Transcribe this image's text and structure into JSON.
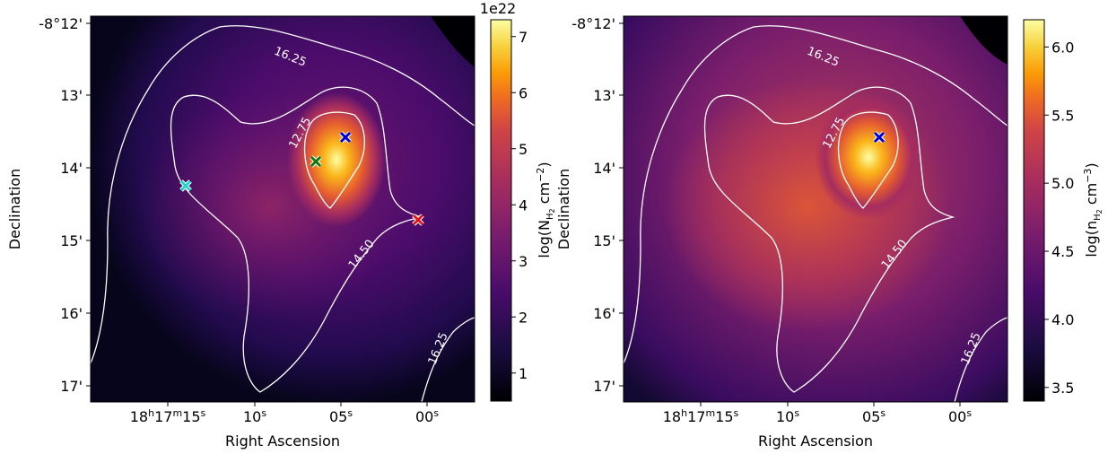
{
  "chart_data": [
    {
      "type": "heatmap",
      "xlabel": "Right Ascension",
      "ylabel": "Declination",
      "x_tick_labels": [
        {
          "h": "18",
          "hsup": "h",
          "m": "17",
          "msup": "m",
          "s": "15",
          "ssup": "s"
        },
        {
          "s": "10",
          "ssup": "s"
        },
        {
          "s": "05",
          "ssup": "s"
        },
        {
          "s": "00",
          "ssup": "s"
        }
      ],
      "y_tick_labels": [
        "-8°12'",
        "13'",
        "14'",
        "15'",
        "16'",
        "17'"
      ],
      "contour_labels": [
        "16.25",
        "12.75",
        "14.50",
        "16.25"
      ],
      "colorbar": {
        "label_main": "log(N",
        "label_sub1": "H",
        "label_sub2": "2",
        "label_tail": " cm",
        "label_exp": "−2",
        "label_close": ")",
        "offset_text": "1e22",
        "ticks": [
          "1",
          "2",
          "3",
          "4",
          "5",
          "6",
          "7"
        ],
        "range": [
          0.5,
          7.3
        ],
        "colormap": "inferno"
      },
      "markers": [
        {
          "name": "blue",
          "color": "#0000cc"
        },
        {
          "name": "green",
          "color": "#117711"
        },
        {
          "name": "cyan",
          "color": "#22d3d3"
        },
        {
          "name": "red",
          "color": "#e01515"
        }
      ]
    },
    {
      "type": "heatmap",
      "xlabel": "Right Ascension",
      "ylabel": "Declination",
      "x_tick_labels": [
        {
          "h": "18",
          "hsup": "h",
          "m": "17",
          "msup": "m",
          "s": "15",
          "ssup": "s"
        },
        {
          "s": "10",
          "ssup": "s"
        },
        {
          "s": "05",
          "ssup": "s"
        },
        {
          "s": "00",
          "ssup": "s"
        }
      ],
      "y_tick_labels": [
        "-8°12'",
        "13'",
        "14'",
        "15'",
        "16'",
        "17'"
      ],
      "contour_labels": [
        "16.25",
        "12.75",
        "14.50",
        "16.25"
      ],
      "colorbar": {
        "label_main": "log(n",
        "label_sub1": "H",
        "label_sub2": "2",
        "label_tail": " cm",
        "label_exp": "−3",
        "label_close": ")",
        "offset_text": "",
        "ticks": [
          "3.5",
          "4.0",
          "4.5",
          "5.0",
          "5.5",
          "6.0"
        ],
        "range": [
          3.4,
          6.2
        ],
        "colormap": "inferno"
      },
      "markers": [
        {
          "name": "blue",
          "color": "#0000cc"
        }
      ]
    }
  ]
}
